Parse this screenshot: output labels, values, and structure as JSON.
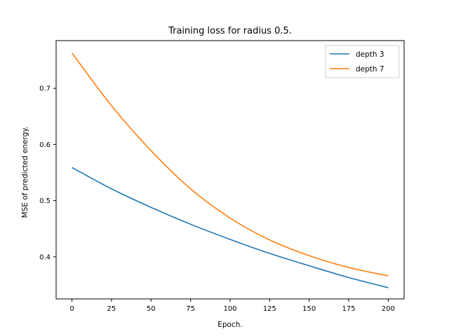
{
  "chart_data": {
    "type": "line",
    "title": "Training loss for radius 0.5.",
    "xlabel": "Epoch.",
    "ylabel": "MSE of predicted energy.",
    "xlim": [
      -10,
      210
    ],
    "ylim": [
      0.325,
      0.785
    ],
    "xticks": [
      0,
      25,
      50,
      75,
      100,
      125,
      150,
      175,
      200
    ],
    "yticks": [
      0.4,
      0.5,
      0.6,
      0.7
    ],
    "ytick_labels": [
      "0.4",
      "0.5",
      "0.6",
      "0.7"
    ],
    "grid": false,
    "legend_position": "top-right",
    "x": [
      0,
      25,
      50,
      75,
      100,
      125,
      150,
      175,
      200
    ],
    "series": [
      {
        "name": "depth 3",
        "color": "#1f77b4",
        "values": [
          0.559,
          0.521,
          0.488,
          0.458,
          0.431,
          0.406,
          0.384,
          0.363,
          0.345
        ]
      },
      {
        "name": "depth 7",
        "color": "#ff7f0e",
        "values": [
          0.763,
          0.669,
          0.589,
          0.521,
          0.469,
          0.43,
          0.402,
          0.381,
          0.366
        ]
      }
    ]
  }
}
